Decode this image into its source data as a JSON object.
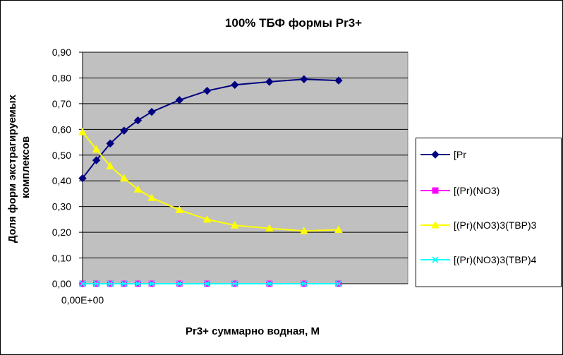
{
  "chart_data": {
    "type": "line",
    "title": "100%  ТБФ  формы Pr3+",
    "xlabel": "Pr3+ суммарно  водная, М",
    "ylabel": "Доля форм экстрагируемых комплексов",
    "ylabel_lines": [
      "Доля форм экстрагируемых",
      "комплексов"
    ],
    "x_tick_labels": [
      "0,00E+00"
    ],
    "y_ticks": [
      "0,00",
      "0,10",
      "0,20",
      "0,30",
      "0,40",
      "0,50",
      "0,60",
      "0,70",
      "0,80",
      "0,90"
    ],
    "ylim": [
      0,
      0.9
    ],
    "grid": true,
    "legend_position": "right",
    "x_positions": [
      0,
      1,
      2,
      3,
      4,
      5,
      7,
      9,
      11,
      13.5,
      16,
      18.5
    ],
    "series": [
      {
        "name": "[Pr",
        "color": "#000080",
        "marker": "diamond",
        "values": [
          0.41,
          0.48,
          0.545,
          0.595,
          0.635,
          0.668,
          0.714,
          0.75,
          0.773,
          0.785,
          0.795,
          0.79
        ]
      },
      {
        "name": "[(Pr)(NO3)",
        "color": "#ff00ff",
        "marker": "square",
        "values": [
          0,
          0,
          0,
          0,
          0,
          0,
          0,
          0,
          0,
          0,
          0,
          0
        ]
      },
      {
        "name": "[(Pr)(NO3)3(TBP)3",
        "color": "#ffff00",
        "marker": "triangle",
        "values": [
          0.59,
          0.522,
          0.457,
          0.41,
          0.367,
          0.334,
          0.287,
          0.25,
          0.227,
          0.215,
          0.205,
          0.21
        ]
      },
      {
        "name": "[(Pr)(NO3)3(TBP)4",
        "color": "#00ffff",
        "marker": "x",
        "values": [
          0,
          0,
          0,
          0,
          0,
          0,
          0,
          0,
          0,
          0,
          0,
          0
        ]
      }
    ]
  }
}
